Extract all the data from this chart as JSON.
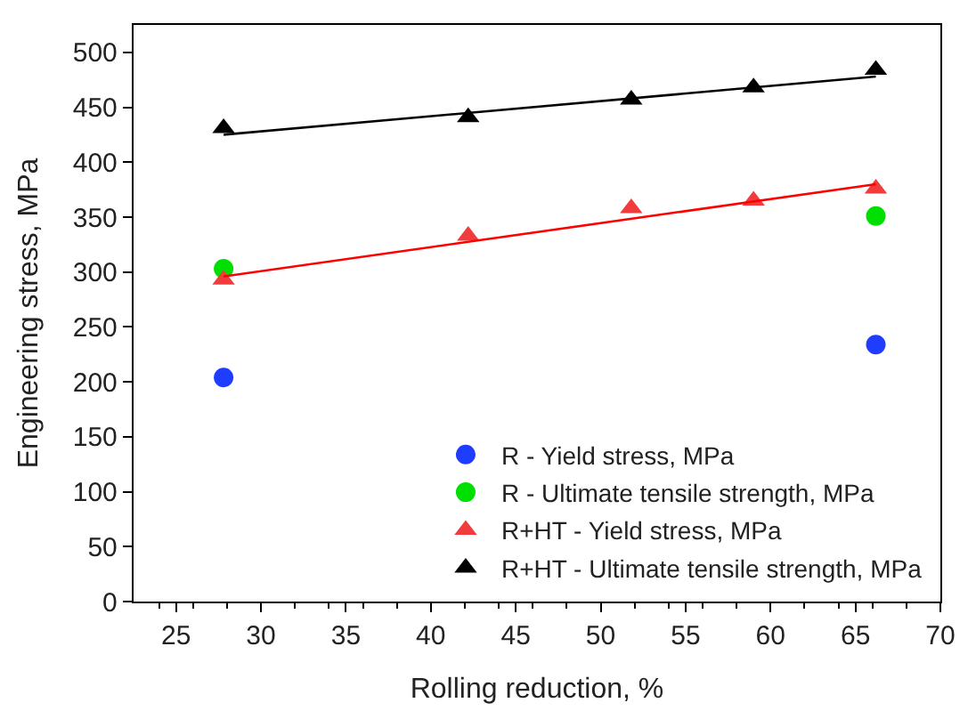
{
  "chart_data": {
    "type": "scatter",
    "xlabel": "Rolling reduction, %",
    "ylabel": "Engineering stress, MPa",
    "xlim": [
      22.5,
      70
    ],
    "xticks": [
      25,
      30,
      35,
      40,
      45,
      50,
      55,
      60,
      65,
      70
    ],
    "ylim": [
      0,
      525
    ],
    "yticks": [
      0,
      50,
      100,
      150,
      200,
      250,
      300,
      350,
      400,
      450,
      500
    ],
    "legend": "bottom right",
    "series": [
      {
        "name": "R - Yield stress, MPa",
        "color": "#1f3dff",
        "marker": "circle",
        "x": [
          27.8,
          66.2
        ],
        "values": [
          204,
          234
        ]
      },
      {
        "name": "R - Ultimate tensile strength, MPa",
        "color": "#00e000",
        "marker": "circle",
        "x": [
          27.8,
          66.2
        ],
        "values": [
          303,
          351
        ]
      },
      {
        "name": "R+HT - Yield stress, MPa",
        "color": "#f03c3c",
        "marker": "triangle",
        "x": [
          27.8,
          42.2,
          51.8,
          59,
          66.2
        ],
        "values": [
          293,
          333,
          358,
          365,
          376
        ]
      },
      {
        "name": "R+HT - Ultimate tensile strength, MPa",
        "color": "#000000",
        "marker": "triangle",
        "x": [
          27.8,
          42.2,
          51.8,
          59,
          66.2
        ],
        "values": [
          431,
          441,
          457,
          468,
          484
        ]
      },
      {
        "type": "line",
        "color": "#ff0000",
        "marker": "none",
        "x": [
          27.8,
          66.2
        ],
        "values": [
          296,
          380
        ]
      },
      {
        "type": "line",
        "color": "#000000",
        "marker": "none",
        "x": [
          27.8,
          66.2
        ],
        "values": [
          425,
          478
        ]
      }
    ]
  }
}
